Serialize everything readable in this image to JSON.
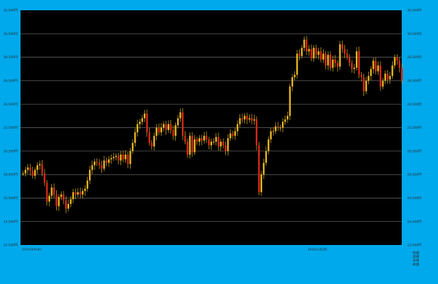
{
  "chart_data": {
    "type": "candlestick",
    "title": "",
    "xlabel": "",
    "ylabel": "",
    "ylim": [
      12500,
      32500
    ],
    "yticks": [
      12500,
      14500,
      16500,
      18500,
      20500,
      22500,
      24500,
      26500,
      28500,
      30500,
      32500
    ],
    "ytick_labels": [
      "12,500円",
      "14,500円",
      "16,500円",
      "18,500円",
      "20,500円",
      "22,500円",
      "24,500円",
      "26,500円",
      "28,500円",
      "30,500円",
      "32,500円"
    ],
    "grid": true,
    "x_date_labels": [
      {
        "label": "2015/9/9(水)",
        "index": 0
      },
      {
        "label": "2020/1/6(月)",
        "index": 120
      }
    ],
    "legend": [
      "始値",
      "高値",
      "安値",
      "終値"
    ],
    "legend_position": "bottom-right",
    "colors": {
      "plot_bg": "#000000",
      "frame_bg": "#00a9ec",
      "grid": "#6d6d6d",
      "up": "#e8b81e",
      "down": "#d92a1a",
      "wick": "#cfa21a"
    },
    "close": [
      18600,
      18900,
      19100,
      18800,
      18400,
      18900,
      19300,
      19400,
      18600,
      17800,
      16200,
      16700,
      17400,
      16800,
      15800,
      16600,
      16800,
      16300,
      15600,
      16000,
      16400,
      17000,
      16800,
      17000,
      16800,
      17100,
      17300,
      18000,
      18900,
      19300,
      19600,
      19500,
      19300,
      19000,
      19700,
      19500,
      19800,
      19900,
      20000,
      20100,
      19700,
      20200,
      19800,
      20200,
      19400,
      20500,
      21200,
      22100,
      22800,
      23000,
      23300,
      23700,
      22100,
      21200,
      20900,
      21800,
      22500,
      22100,
      22500,
      22800,
      22300,
      22800,
      22300,
      21800,
      22700,
      23300,
      23800,
      21800,
      21300,
      20200,
      21800,
      20400,
      21500,
      21300,
      21600,
      21400,
      21800,
      21500,
      21000,
      21300,
      21300,
      21700,
      20900,
      21300,
      21000,
      20500,
      21600,
      22000,
      21800,
      22200,
      22800,
      23300,
      23200,
      23500,
      23200,
      23300,
      23100,
      23200,
      21000,
      17000,
      18500,
      19500,
      20500,
      21500,
      22200,
      22200,
      22600,
      22500,
      22500,
      23000,
      23200,
      23500,
      26000,
      26800,
      27000,
      28800,
      28600,
      29300,
      30000,
      29000,
      29200,
      28400,
      29300,
      28700,
      29000,
      28300,
      28800,
      27800,
      28700,
      27600,
      28300,
      28000,
      27700,
      29600,
      29200,
      28800,
      28500,
      28000,
      27500,
      27600,
      29000,
      27000,
      26800,
      25600,
      26500,
      26900,
      27500,
      28200,
      27300,
      27800,
      26000,
      26500,
      27100,
      26600,
      26900,
      27800,
      28500,
      28200,
      27600,
      26500
    ],
    "x_start_label_index": 0
  }
}
